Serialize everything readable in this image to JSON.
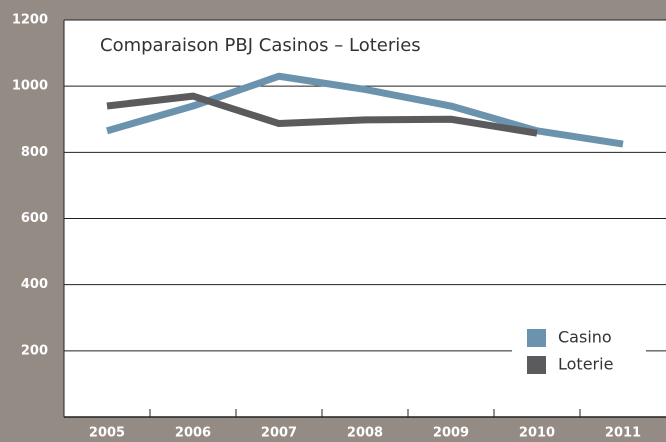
{
  "chart_data": {
    "type": "line",
    "title": "Comparaison PBJ Casinos – Loteries",
    "categories": [
      "2005",
      "2006",
      "2007",
      "2008",
      "2009",
      "2010",
      "2011"
    ],
    "series": [
      {
        "name": "Casino",
        "color": "#6b93ad",
        "values": [
          865,
          940,
          1030,
          990,
          940,
          865,
          825
        ]
      },
      {
        "name": "Loterie",
        "color": "#5b5b5e",
        "values": [
          940,
          970,
          887,
          898,
          900,
          858,
          null
        ]
      }
    ],
    "ylim": [
      0,
      1200
    ],
    "yticks": [
      200,
      400,
      600,
      800,
      1000,
      1200
    ],
    "grid": true,
    "legend": "lower right"
  }
}
